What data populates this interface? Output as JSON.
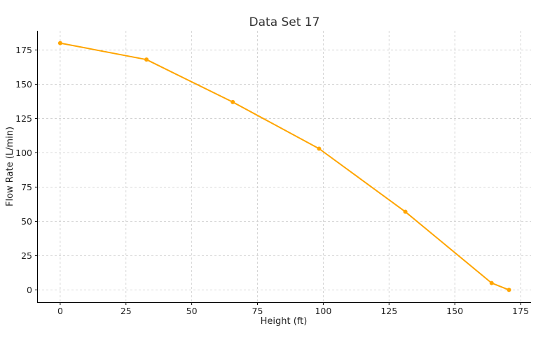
{
  "chart_data": {
    "type": "line",
    "title": "Data Set 17",
    "xlabel": "Height (ft)",
    "ylabel": "Flow Rate (L/min)",
    "xlim": [
      -8.5,
      179
    ],
    "ylim": [
      -9,
      189
    ],
    "xticks": [
      0,
      25,
      50,
      75,
      100,
      125,
      150,
      175
    ],
    "yticks": [
      0,
      25,
      50,
      75,
      100,
      125,
      150,
      175
    ],
    "grid": true,
    "series": [
      {
        "color": "#FFA500",
        "x": [
          0,
          32.8,
          65.6,
          98.4,
          131.2,
          164.0,
          170.6
        ],
        "y": [
          180,
          168,
          137,
          103,
          57,
          5,
          0
        ]
      }
    ]
  }
}
